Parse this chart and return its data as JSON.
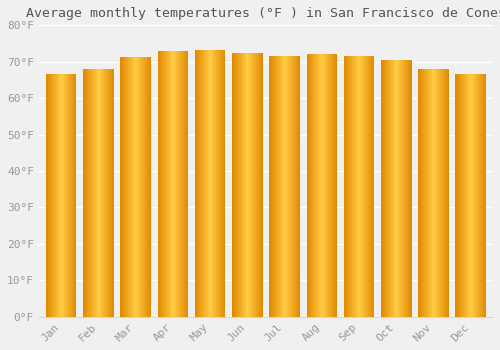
{
  "title": "Average monthly temperatures (°F ) in San Francisco de Cones",
  "months": [
    "Jan",
    "Feb",
    "Mar",
    "Apr",
    "May",
    "Jun",
    "Jul",
    "Aug",
    "Sep",
    "Oct",
    "Nov",
    "Dec"
  ],
  "values": [
    66.5,
    68.0,
    71.2,
    73.0,
    73.3,
    72.5,
    71.5,
    72.0,
    71.5,
    70.5,
    68.0,
    66.5
  ],
  "bar_color_main": "#FFA500",
  "bar_color_light": "#FFD060",
  "bar_color_dark": "#E08000",
  "ylim": [
    0,
    80
  ],
  "yticks": [
    0,
    10,
    20,
    30,
    40,
    50,
    60,
    70,
    80
  ],
  "background_color": "#F0F0F0",
  "plot_bg_color": "#F0F0F0",
  "grid_color": "#FFFFFF",
  "tick_label_color": "#999999",
  "title_color": "#555555",
  "title_fontsize": 9.5,
  "tick_fontsize": 8,
  "bar_width": 0.82
}
